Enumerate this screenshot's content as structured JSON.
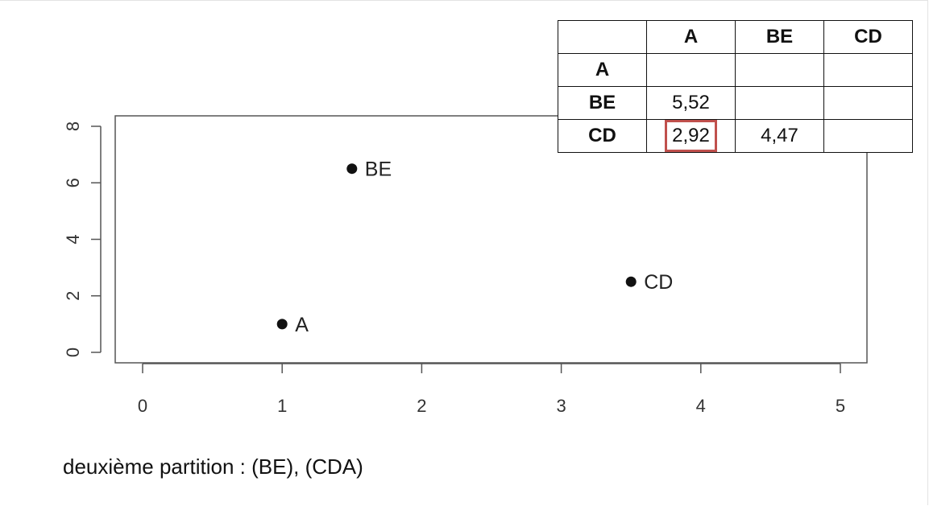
{
  "chart_data": {
    "type": "scatter",
    "xlim": [
      -0.2,
      5.2
    ],
    "ylim": [
      -0.3,
      8.4
    ],
    "x_ticks": [
      0,
      1,
      2,
      3,
      4,
      5
    ],
    "y_ticks": [
      0,
      2,
      4,
      6,
      8
    ],
    "x_tick_labels": [
      "0",
      "1",
      "2",
      "3",
      "4",
      "5"
    ],
    "y_tick_labels": [
      "0",
      "2",
      "4",
      "6",
      "8"
    ],
    "points": [
      {
        "label": "A",
        "x": 1.0,
        "y": 1.0
      },
      {
        "label": "BE",
        "x": 1.5,
        "y": 6.5
      },
      {
        "label": "CD",
        "x": 3.5,
        "y": 2.5
      }
    ],
    "grid": false,
    "xlabel": "",
    "ylabel": ""
  },
  "distance_table": {
    "col_headers": [
      "",
      "A",
      "BE",
      "CD"
    ],
    "rows": [
      {
        "label": "A",
        "cells": [
          "",
          "",
          ""
        ]
      },
      {
        "label": "BE",
        "cells": [
          "5,52",
          "",
          ""
        ]
      },
      {
        "label": "CD",
        "cells": [
          "2,92",
          "4,47",
          ""
        ]
      }
    ],
    "highlight_color": "#c0504d"
  },
  "caption": "deuxième partition : (BE), (CDA)"
}
